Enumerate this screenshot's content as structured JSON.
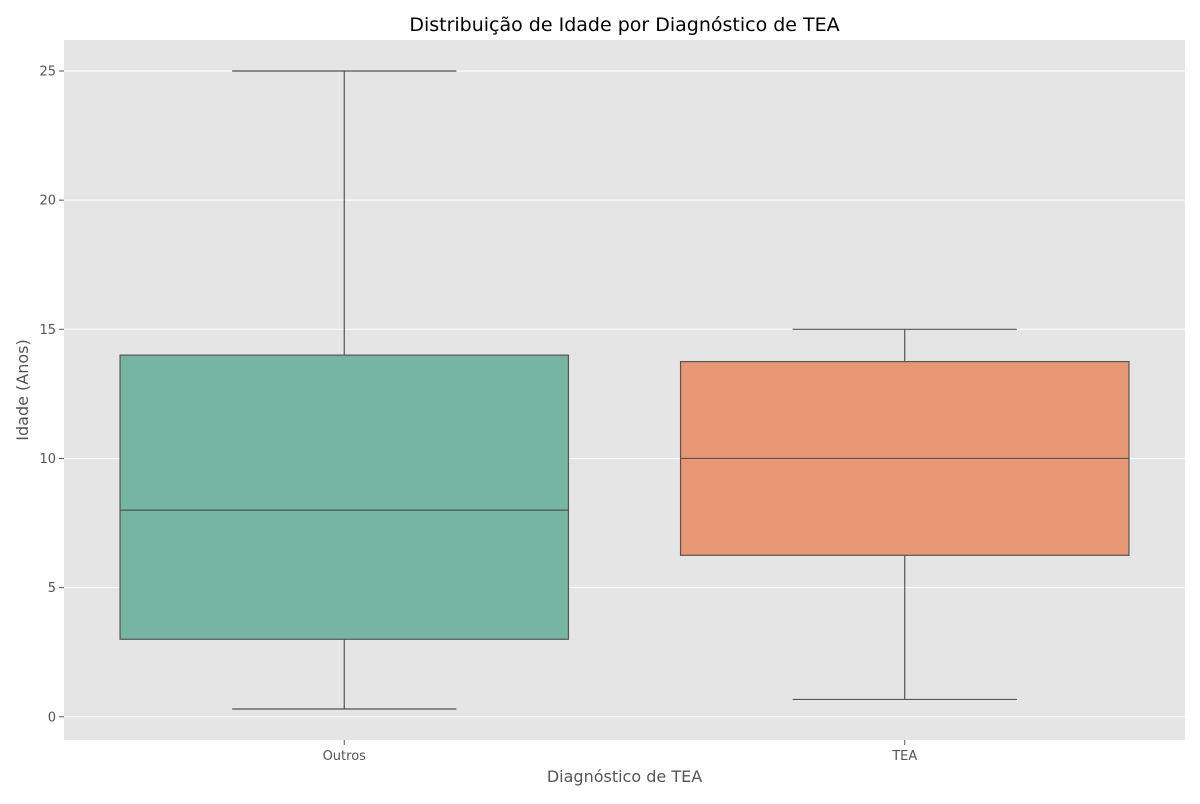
{
  "chart_data": {
    "type": "box",
    "title": "Distribuição de Idade por Diagnóstico de TEA",
    "xlabel": "Diagnóstico de TEA",
    "ylabel": "Idade (Anos)",
    "ylim": [
      -0.9,
      26.2
    ],
    "yticks": [
      0,
      5,
      10,
      15,
      20,
      25
    ],
    "grid": true,
    "categories": [
      "Outros",
      "TEA"
    ],
    "boxes": [
      {
        "category": "Outros",
        "whisker_low": 0.3,
        "q1": 3.0,
        "median": 8.0,
        "q3": 14.0,
        "whisker_high": 25.0,
        "color": "#75b5a1"
      },
      {
        "category": "TEA",
        "whisker_low": 0.67,
        "q1": 6.25,
        "median": 10.0,
        "q3": 13.75,
        "whisker_high": 15.0,
        "color": "#e89774"
      }
    ],
    "colors": {
      "plot_background": "#e5e5e5",
      "grid": "#ffffff",
      "line": "#555555"
    }
  }
}
